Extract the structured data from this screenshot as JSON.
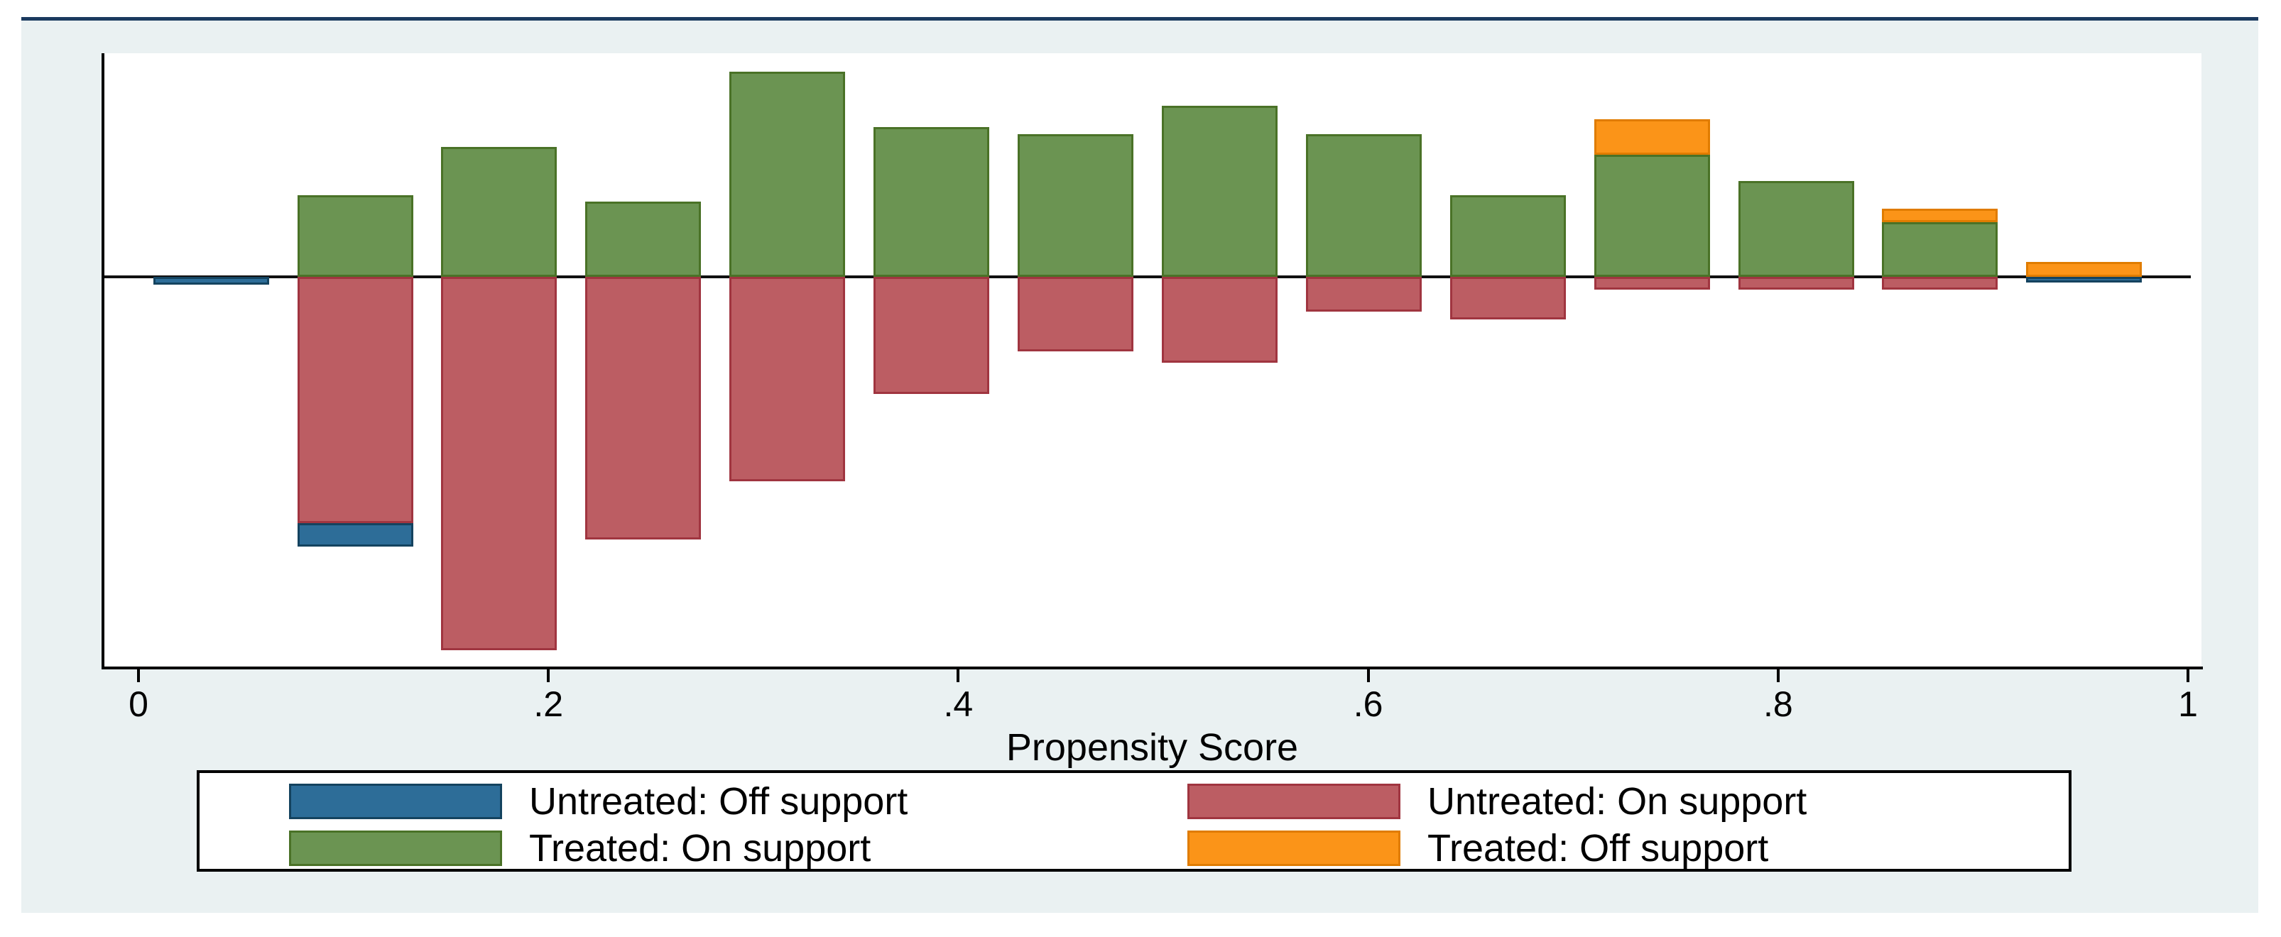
{
  "chart_data": {
    "type": "bar",
    "subtype": "propensity-score-overlap-histogram",
    "title": "",
    "xlabel": "Propensity Score",
    "x_ticks": [
      {
        "label": "0",
        "value": 0.0
      },
      {
        "label": ".2",
        "value": 0.2
      },
      {
        "label": ".4",
        "value": 0.4
      },
      {
        "label": ".6",
        "value": 0.6
      },
      {
        "label": ".8",
        "value": 0.8
      },
      {
        "label": "1",
        "value": 1.0
      }
    ],
    "xlim": [
      -0.017,
      1.008
    ],
    "y_axis": "unlabeled relative frequency; treated plotted above baseline, untreated below",
    "grid": false,
    "legend_position": "below plot, 2x2 box",
    "legend": [
      {
        "key": "untreated_off",
        "label": "Untreated: Off support"
      },
      {
        "key": "untreated_on",
        "label": "Untreated: On support"
      },
      {
        "key": "treated_on",
        "label": "Treated: On support"
      },
      {
        "key": "treated_off",
        "label": "Treated: Off support"
      }
    ],
    "colors": {
      "treated_on": {
        "fill": "#6b9452",
        "border": "#4a7227"
      },
      "treated_off": {
        "fill": "#fb9418",
        "border": "#e07c00"
      },
      "untreated_on": {
        "fill": "#bc5d63",
        "border": "#a03540"
      },
      "untreated_off": {
        "fill": "#2d6d98",
        "border": "#14435f"
      }
    },
    "bar_width_x": 0.0565,
    "bars": [
      {
        "x": 0.0355,
        "treated_on": 0,
        "treated_off": 0,
        "untreated_on": 0,
        "untreated_off": 0.013
      },
      {
        "x": 0.106,
        "treated_on": 0.133,
        "treated_off": 0,
        "untreated_on": 0.401,
        "untreated_off": 0.038
      },
      {
        "x": 0.1765,
        "treated_on": 0.211,
        "treated_off": 0,
        "untreated_on": 0.607,
        "untreated_off": 0
      },
      {
        "x": 0.247,
        "treated_on": 0.122,
        "treated_off": 0,
        "untreated_on": 0.427,
        "untreated_off": 0
      },
      {
        "x": 0.3175,
        "treated_on": 0.334,
        "treated_off": 0,
        "untreated_on": 0.333,
        "untreated_off": 0
      },
      {
        "x": 0.388,
        "treated_on": 0.244,
        "treated_off": 0,
        "untreated_on": 0.191,
        "untreated_off": 0
      },
      {
        "x": 0.4585,
        "treated_on": 0.232,
        "treated_off": 0,
        "untreated_on": 0.121,
        "untreated_off": 0
      },
      {
        "x": 0.529,
        "treated_on": 0.278,
        "treated_off": 0,
        "untreated_on": 0.14,
        "untreated_off": 0
      },
      {
        "x": 0.5995,
        "treated_on": 0.232,
        "treated_off": 0,
        "untreated_on": 0.057,
        "untreated_off": 0
      },
      {
        "x": 0.67,
        "treated_on": 0.133,
        "treated_off": 0,
        "untreated_on": 0.069,
        "untreated_off": 0
      },
      {
        "x": 0.7405,
        "treated_on": 0.199,
        "treated_off": 0.057,
        "untreated_on": 0.021,
        "untreated_off": 0
      },
      {
        "x": 0.811,
        "treated_on": 0.156,
        "treated_off": 0,
        "untreated_on": 0.021,
        "untreated_off": 0
      },
      {
        "x": 0.8815,
        "treated_on": 0.089,
        "treated_off": 0.022,
        "untreated_on": 0.021,
        "untreated_off": 0
      },
      {
        "x": 0.952,
        "treated_on": 0,
        "treated_off": 0.024,
        "untreated_on": 0,
        "untreated_off": 0.009
      }
    ],
    "palette": {
      "page_background": "#ffffff",
      "graph_background": "#eaf1f2",
      "plot_background": "#ffffff",
      "axis_color": "#000000",
      "top_rule_color": "#1b3a5f"
    }
  }
}
